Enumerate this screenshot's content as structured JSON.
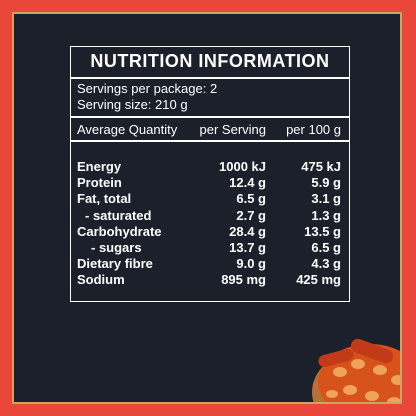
{
  "title": "NUTRITION INFORMATION",
  "servings_per_package": "Servings per package: 2",
  "serving_size": "Serving size: 210 g",
  "table": {
    "columns": [
      "Average Quantity",
      "per Serving",
      "per 100 g"
    ],
    "rows": [
      [
        "Energy",
        "1000 kJ",
        "475 kJ"
      ],
      [
        "Protein",
        "12.4 g",
        "5.9 g"
      ],
      [
        "Fat, total",
        "6.5 g",
        "3.1 g"
      ],
      [
        "- saturated",
        "2.7 g",
        "1.3 g"
      ],
      [
        "Carbohydrate",
        "28.4 g",
        "13.5 g"
      ],
      [
        "- sugars",
        "13.7 g",
        "6.5 g"
      ],
      [
        "Dietary fibre",
        "9.0 g",
        "4.3 g"
      ],
      [
        "Sodium",
        "895 mg",
        "425 mg"
      ]
    ]
  }
}
